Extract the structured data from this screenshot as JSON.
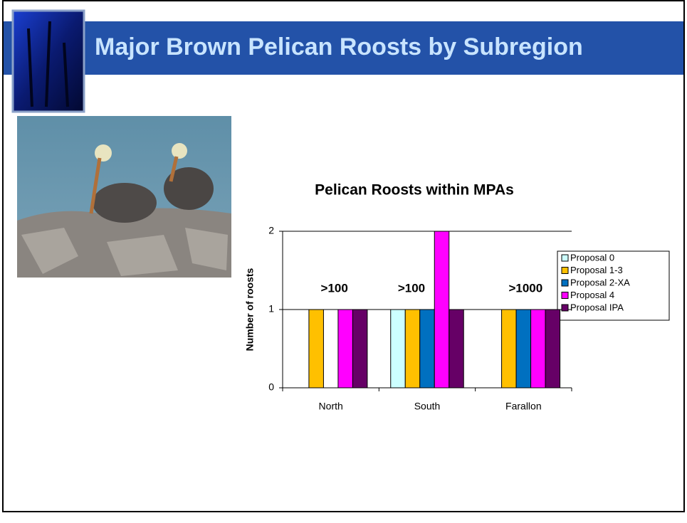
{
  "header": {
    "title": "Major Brown Pelican Roosts by Subregion"
  },
  "chart_data": {
    "type": "bar",
    "title": "Pelican Roosts within MPAs",
    "y_label": "Number of roosts",
    "categories": [
      "North",
      "South",
      "Farallon"
    ],
    "series": [
      {
        "name": "Proposal 0",
        "color": "#ccffff",
        "values": [
          0,
          1,
          0
        ]
      },
      {
        "name": "Proposal 1-3",
        "color": "#ffc000",
        "values": [
          1,
          1,
          1
        ]
      },
      {
        "name": "Proposal 2-XA",
        "color": "#0070c0",
        "values": [
          0,
          1,
          1
        ]
      },
      {
        "name": "Proposal 4",
        "color": "#ff00ff",
        "values": [
          1,
          2,
          1
        ]
      },
      {
        "name": "Proposal IPA",
        "color": "#660066",
        "values": [
          1,
          1,
          1
        ]
      }
    ],
    "annotations": [
      ">100",
      ">100",
      ">1000"
    ],
    "ylim": [
      0,
      2
    ],
    "yticks": [
      0,
      1,
      2
    ],
    "grid": true,
    "legend": "right"
  }
}
